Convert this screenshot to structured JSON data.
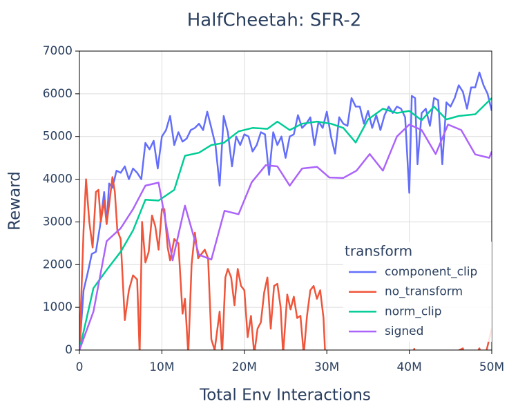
{
  "chart_data": {
    "type": "line",
    "title": "HalfCheetah: SFR-2",
    "x_label": "Total Env Interactions",
    "y_label": "Reward",
    "legend_title": "transform",
    "legend_position": "lower right",
    "grid": true,
    "xlim": [
      0,
      50000000.0
    ],
    "xticks": [
      0,
      {
        "value": 10000000.0,
        "label": "10M"
      },
      {
        "value": 20000000.0,
        "label": "20M"
      },
      {
        "value": 30000000.0,
        "label": "30M"
      },
      {
        "value": 40000000.0,
        "label": "40M"
      },
      {
        "value": 50000000.0,
        "label": "50M"
      }
    ],
    "ylim": [
      0,
      7000
    ],
    "yticks": [
      0,
      1000,
      2000,
      3000,
      4000,
      5000,
      6000,
      7000
    ],
    "series": [
      {
        "name": "component_clip",
        "color": "#636efa",
        "x": [
          0,
          500000.0,
          1000000.0,
          1500000.0,
          2000000.0,
          2500000.0,
          3000000.0,
          3300000.0,
          3600000.0,
          4000000.0,
          4500000.0,
          5000000.0,
          5500000.0,
          6000000.0,
          6500000.0,
          7000000.0,
          7500000.0,
          8000000.0,
          8500000.0,
          9000000.0,
          9500000.0,
          10000000.0,
          10500000.0,
          11000000.0,
          11500000.0,
          12000000.0,
          12500000.0,
          13000000.0,
          13500000.0,
          14000000.0,
          14500000.0,
          15000000.0,
          15500000.0,
          16000000.0,
          16500000.0,
          17000000.0,
          17500000.0,
          18000000.0,
          18500000.0,
          19000000.0,
          19500000.0,
          20000000.0,
          20500000.0,
          21000000.0,
          21500000.0,
          22000000.0,
          22500000.0,
          23000000.0,
          23500000.0,
          24000000.0,
          24500000.0,
          25000000.0,
          25500000.0,
          26000000.0,
          26500000.0,
          27000000.0,
          27500000.0,
          28000000.0,
          28500000.0,
          29000000.0,
          29500000.0,
          30000000.0,
          30500000.0,
          31000000.0,
          31500000.0,
          32000000.0,
          32500000.0,
          33000000.0,
          33500000.0,
          34000000.0,
          34500000.0,
          35000000.0,
          35500000.0,
          36000000.0,
          36500000.0,
          37000000.0,
          37500000.0,
          38000000.0,
          38500000.0,
          39000000.0,
          39500000.0,
          40000000.0,
          40300000.0,
          40700000.0,
          41000000.0,
          41500000.0,
          42000000.0,
          42500000.0,
          43000000.0,
          43500000.0,
          44000000.0,
          44500000.0,
          45000000.0,
          45500000.0,
          46000000.0,
          46500000.0,
          47000000.0,
          47500000.0,
          48000000.0,
          48500000.0,
          49000000.0,
          49500000.0,
          50000000.0
        ],
        "values": [
          0,
          1400,
          1800,
          2250,
          2300,
          2900,
          3700,
          2950,
          3900,
          3800,
          4200,
          4150,
          4300,
          4000,
          4250,
          4150,
          4000,
          4850,
          4700,
          4900,
          4250,
          5000,
          5150,
          5480,
          4800,
          5100,
          4880,
          4950,
          5150,
          5200,
          5300,
          5150,
          5580,
          5200,
          4800,
          3850,
          5480,
          5100,
          4300,
          5000,
          4800,
          5050,
          5000,
          4650,
          4800,
          5100,
          5050,
          4100,
          5100,
          4800,
          5000,
          4500,
          5000,
          5050,
          5500,
          5200,
          5300,
          5450,
          4800,
          5350,
          5200,
          5580,
          5000,
          4600,
          5450,
          5300,
          5250,
          5900,
          5700,
          5700,
          5300,
          5600,
          5200,
          5500,
          5150,
          5500,
          5700,
          5550,
          5700,
          5650,
          5450,
          3680,
          5950,
          5900,
          4350,
          5550,
          5650,
          5250,
          5900,
          5850,
          4350,
          5800,
          5700,
          5900,
          6200,
          6050,
          5650,
          6150,
          6150,
          6500,
          6200,
          6000,
          5600
        ]
      },
      {
        "name": "no_transform",
        "color": "#ef553b",
        "x": [
          0,
          500000.0,
          800000.0,
          1200000.0,
          1600000.0,
          2000000.0,
          2300000.0,
          2600000.0,
          3000000.0,
          3300000.0,
          3600000.0,
          4000000.0,
          4300000.0,
          4600000.0,
          5000000.0,
          5500000.0,
          6000000.0,
          6500000.0,
          7000000.0,
          7300000.0,
          7600000.0,
          8000000.0,
          8400000.0,
          8800000.0,
          9200000.0,
          9600000.0,
          10000000.0,
          10300000.0,
          10700000.0,
          11000000.0,
          11500000.0,
          12000000.0,
          12500000.0,
          12800000.0,
          13200000.0,
          13600000.0,
          14000000.0,
          14400000.0,
          14800000.0,
          15200000.0,
          15600000.0,
          16000000.0,
          16400000.0,
          17000000.0,
          17300000.0,
          17700000.0,
          18000000.0,
          18400000.0,
          18800000.0,
          19200000.0,
          19600000.0,
          20000000.0,
          20400000.0,
          20800000.0,
          21200000.0,
          21600000.0,
          22000000.0,
          22400000.0,
          22800000.0,
          23200000.0,
          23600000.0,
          24000000.0,
          24400000.0,
          24700000.0,
          25200000.0,
          25600000.0,
          26000000.0,
          26400000.0,
          26800000.0,
          27200000.0,
          27600000.0,
          28000000.0,
          28400000.0,
          28800000.0,
          29200000.0,
          29600000.0,
          29800000.0,
          31000000.0,
          40000000.0,
          40600000.0,
          41000000.0,
          46500000.0,
          47000000.0,
          48500000.0,
          49000000.0,
          50000000.0
        ],
        "values": [
          0,
          2800,
          4000,
          3000,
          2400,
          3700,
          3750,
          3000,
          3500,
          2950,
          3400,
          4050,
          3700,
          2800,
          2600,
          700,
          1400,
          1750,
          1650,
          -100,
          3000,
          2050,
          2300,
          3150,
          2900,
          2350,
          3300,
          3300,
          2400,
          2100,
          2600,
          2500,
          850,
          1200,
          -100,
          2000,
          2750,
          2150,
          2250,
          2350,
          2150,
          250,
          0,
          900,
          -100,
          1700,
          1900,
          1700,
          1050,
          1900,
          1500,
          1400,
          300,
          800,
          -100,
          500,
          650,
          1350,
          1700,
          500,
          1500,
          1550,
          1000,
          -100,
          1300,
          950,
          1250,
          750,
          800,
          -100,
          800,
          1400,
          1500,
          1200,
          1400,
          750,
          -100,
          -500,
          -500,
          30,
          -500,
          40,
          -500,
          40,
          -300,
          500
        ]
      },
      {
        "name": "norm_clip",
        "color": "#00cc96",
        "x": [
          0,
          1700000.0,
          3400000.0,
          5000000.0,
          6500000.0,
          8000000.0,
          9600000.0,
          11500000.0,
          12800000.0,
          14500000.0,
          16000000.0,
          17500000.0,
          19300000.0,
          21000000.0,
          22800000.0,
          24000000.0,
          25500000.0,
          27000000.0,
          28800000.0,
          30500000.0,
          32000000.0,
          33500000.0,
          35000000.0,
          36800000.0,
          38500000.0,
          40000000.0,
          41500000.0,
          43000000.0,
          44500000.0,
          46000000.0,
          48000000.0,
          50000000.0
        ],
        "values": [
          0,
          1450,
          1900,
          2300,
          2800,
          3520,
          3500,
          3750,
          4550,
          4620,
          4800,
          4850,
          5120,
          5200,
          5180,
          5350,
          5150,
          5300,
          5350,
          5300,
          5200,
          4860,
          5400,
          5650,
          5550,
          5600,
          5380,
          5700,
          5400,
          5480,
          5520,
          5900
        ]
      },
      {
        "name": "signed",
        "color": "#ab63fa",
        "x": [
          0,
          1700000.0,
          3300000.0,
          5000000.0,
          6500000.0,
          8000000.0,
          9600000.0,
          11300000.0,
          12800000.0,
          14500000.0,
          16000000.0,
          17600000.0,
          19300000.0,
          20900000.0,
          22600000.0,
          24000000.0,
          25500000.0,
          27000000.0,
          28800000.0,
          30300000.0,
          32000000.0,
          33600000.0,
          35200000.0,
          36800000.0,
          38500000.0,
          40000000.0,
          41500000.0,
          43200000.0,
          44700000.0,
          46300000.0,
          48000000.0,
          49700000.0,
          50000000.0
        ],
        "values": [
          0,
          900,
          2550,
          2850,
          3300,
          3850,
          3920,
          2100,
          3380,
          2230,
          2120,
          3260,
          3180,
          3930,
          4330,
          4300,
          3850,
          4250,
          4290,
          4040,
          4030,
          4200,
          4590,
          4200,
          5000,
          5280,
          5150,
          4590,
          5280,
          5150,
          4580,
          4500,
          4650
        ]
      }
    ]
  }
}
